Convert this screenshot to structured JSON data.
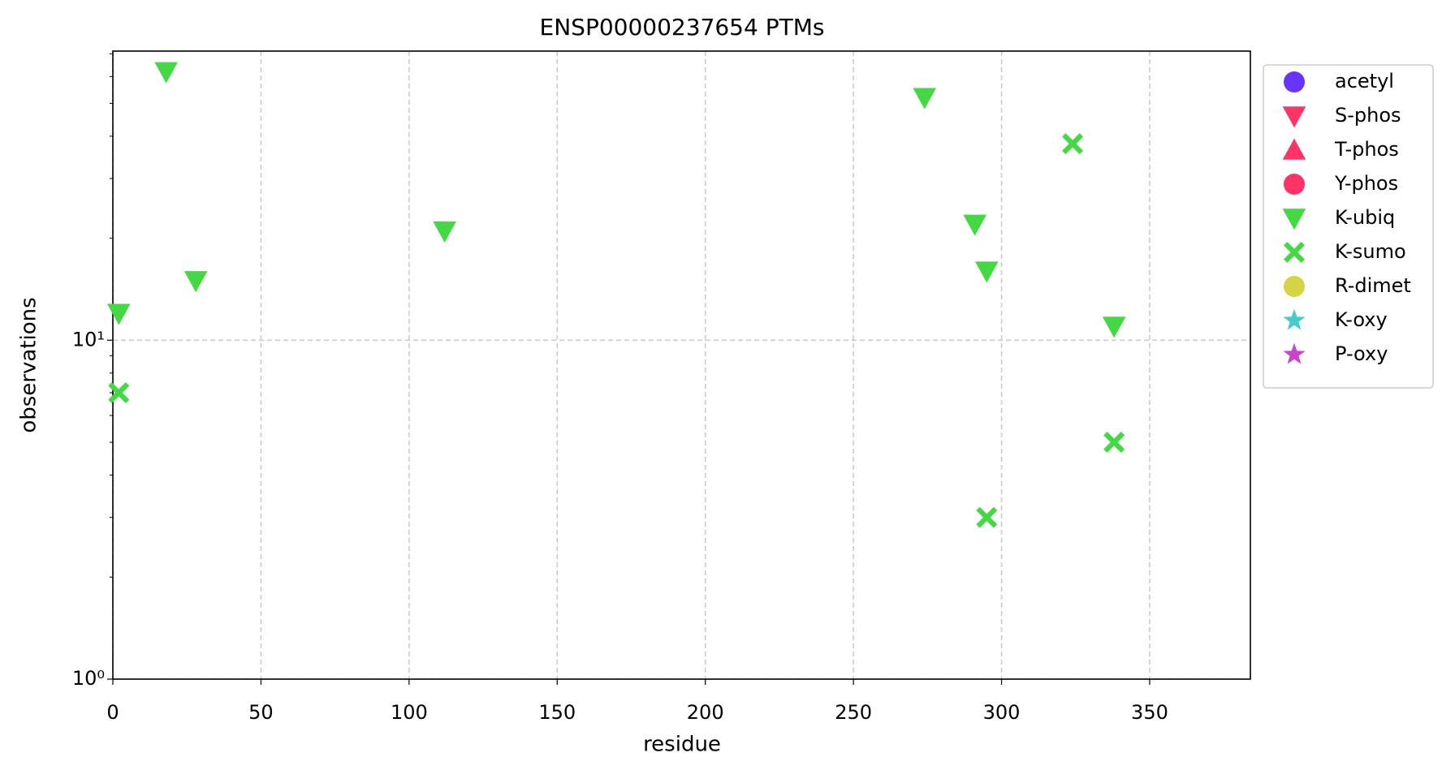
{
  "chart_data": {
    "type": "scatter",
    "title": "ENSP00000237654 PTMs",
    "x_label": "residue",
    "y_label": "observations",
    "xlim": [
      0,
      384
    ],
    "xticks": [
      0,
      50,
      100,
      150,
      200,
      250,
      300,
      350
    ],
    "ylim": [
      1,
      71.3
    ],
    "yscale": "log",
    "yticks": [
      {
        "value": 1,
        "label": "10⁰"
      },
      {
        "value": 10,
        "label": "10¹"
      }
    ],
    "yminorticks": [
      2,
      3,
      4,
      5,
      6,
      7,
      8,
      9,
      20,
      30,
      40,
      50,
      60,
      70
    ],
    "grid": true,
    "legend": "outside-right",
    "series": [
      {
        "name": "acetyl",
        "color": "#6633ff",
        "marker": "circle",
        "x": [],
        "values": []
      },
      {
        "name": "S-phos",
        "color": "#ff3366",
        "marker": "triangle-down",
        "x": [],
        "values": []
      },
      {
        "name": "T-phos",
        "color": "#ff3366",
        "marker": "triangle-up",
        "x": [],
        "values": []
      },
      {
        "name": "Y-phos",
        "color": "#ff3366",
        "marker": "circle",
        "x": [],
        "values": []
      },
      {
        "name": "K-ubiq",
        "color": "#44d944",
        "marker": "triangle-down",
        "x": [
          2,
          18,
          28,
          112,
          274,
          291,
          295,
          338
        ],
        "values": [
          12,
          62,
          15,
          21,
          52,
          22,
          16,
          11
        ]
      },
      {
        "name": "K-sumo",
        "color": "#44d944",
        "marker": "x",
        "x": [
          2,
          324,
          338,
          295
        ],
        "values": [
          7,
          38,
          5,
          3
        ]
      },
      {
        "name": "R-dimet",
        "color": "#d4d444",
        "marker": "circle",
        "x": [],
        "values": []
      },
      {
        "name": "K-oxy",
        "color": "#44cccc",
        "marker": "star",
        "x": [],
        "values": []
      },
      {
        "name": "P-oxy",
        "color": "#cc44cc",
        "marker": "star",
        "x": [],
        "values": []
      }
    ]
  }
}
